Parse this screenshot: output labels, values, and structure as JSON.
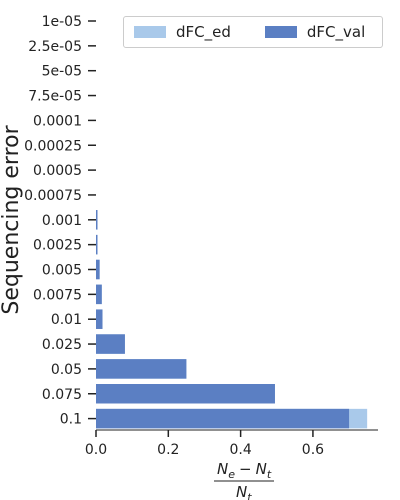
{
  "chart_data": {
    "type": "bar",
    "orientation": "horizontal",
    "stacked": "overlay",
    "ylabel": "Sequencing error",
    "xlabel_numerator_left": "N",
    "xlabel_numerator_left_sub": "e",
    "xlabel_minus": "−",
    "xlabel_numerator_right": "N",
    "xlabel_numerator_right_sub": "t",
    "xlabel_denominator": "N",
    "xlabel_denominator_sub": "t",
    "categories": [
      "1e-05",
      "2.5e-05",
      "5e-05",
      "7.5e-05",
      "0.0001",
      "0.00025",
      "0.0005",
      "0.00075",
      "0.001",
      "0.0025",
      "0.005",
      "0.0075",
      "0.01",
      "0.025",
      "0.05",
      "0.075",
      "0.1"
    ],
    "series": [
      {
        "name": "dFC_ed",
        "color": "#a9c9ea",
        "values": [
          0,
          0,
          0,
          0,
          0,
          0,
          0,
          0,
          0.003,
          0.004,
          0.01,
          0.016,
          0.018,
          0.08,
          0.25,
          0.495,
          0.75
        ]
      },
      {
        "name": "dFC_val",
        "color": "#5b7fc3",
        "values": [
          0,
          0,
          0,
          0,
          0,
          0,
          0,
          0,
          0.003,
          0.004,
          0.01,
          0.016,
          0.018,
          0.08,
          0.25,
          0.495,
          0.7
        ]
      }
    ],
    "xlim": [
      0,
      0.78
    ],
    "xticks": [
      "0.0",
      "0.2",
      "0.4",
      "0.6"
    ],
    "grid": false,
    "legend_position": "top-right"
  }
}
